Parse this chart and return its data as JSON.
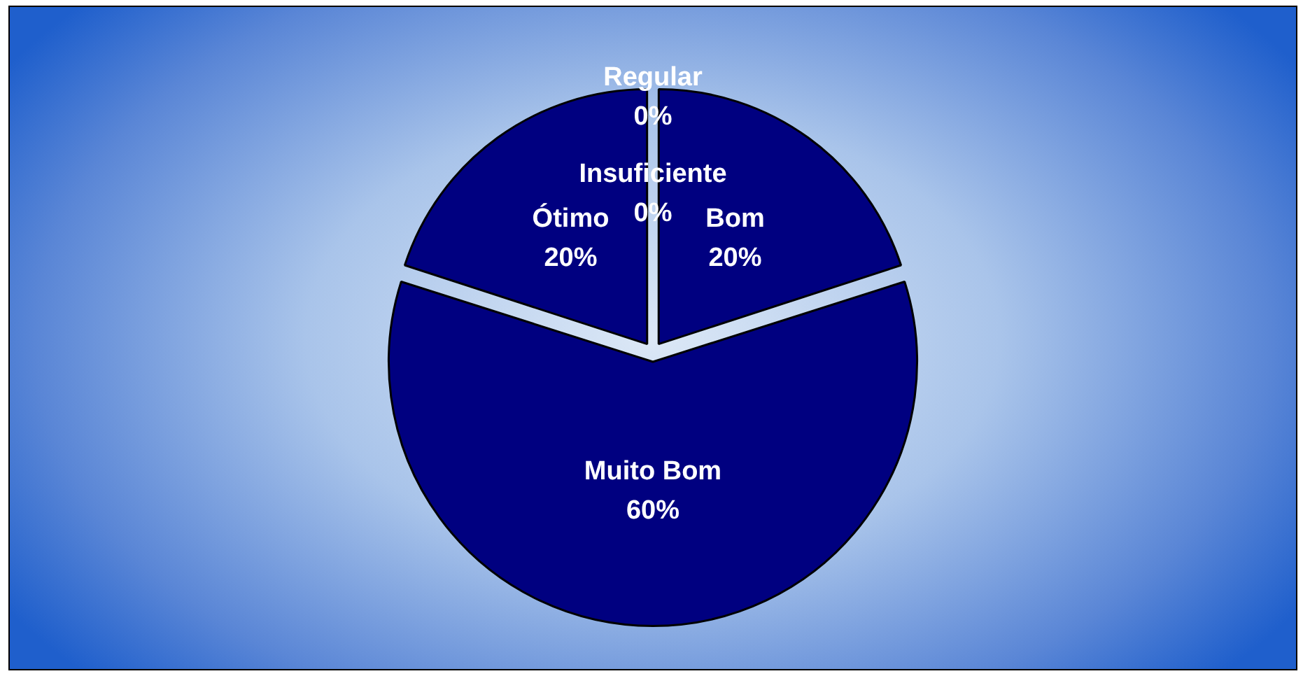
{
  "chart_data": {
    "type": "pie",
    "categories": [
      "Regular",
      "Insuficiente",
      "Bom",
      "Muito Bom",
      "Ótimo"
    ],
    "values": [
      0,
      0,
      20,
      60,
      20
    ],
    "colors": [
      "#000080",
      "#000080",
      "#000080",
      "#000080",
      "#000080"
    ],
    "value_labels": [
      "0%",
      "0%",
      "20%",
      "60%",
      "20%"
    ],
    "legend": false
  }
}
